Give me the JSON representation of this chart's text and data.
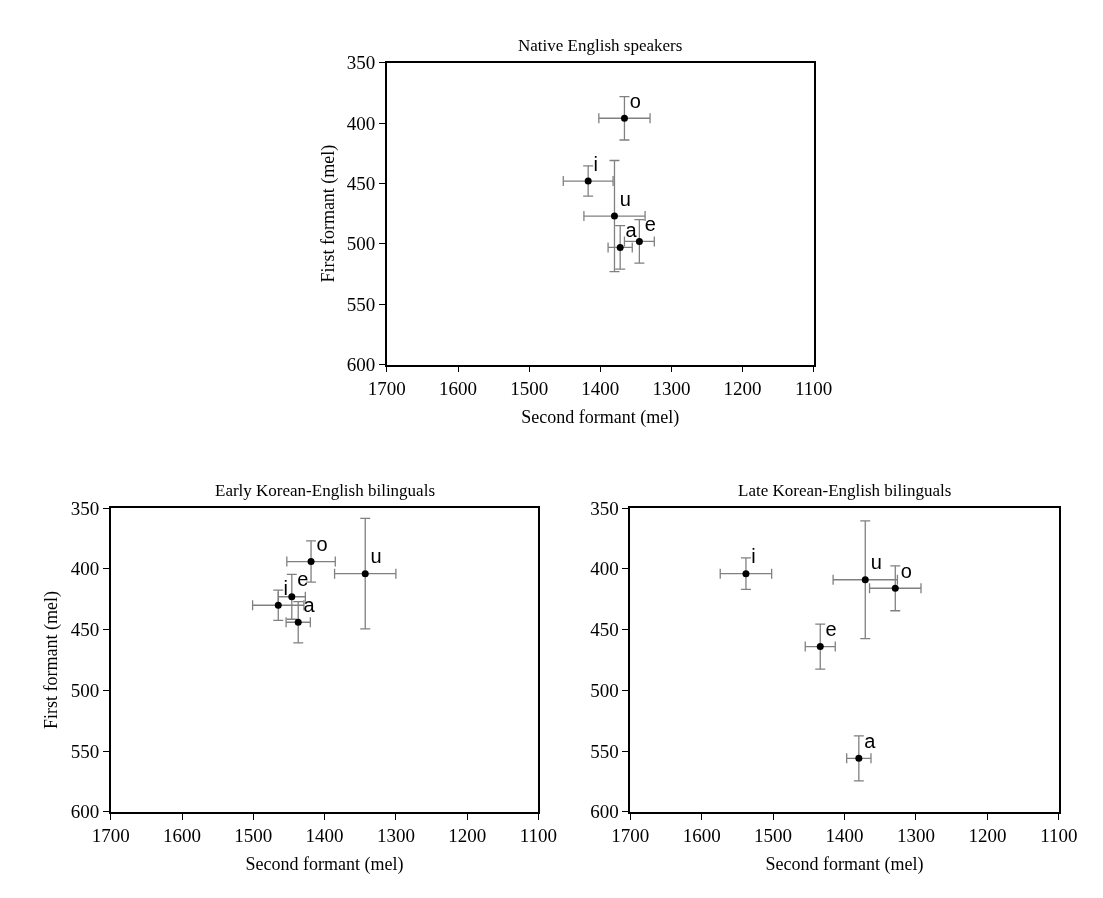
{
  "chart_data": [
    {
      "type": "scatter",
      "title": "Native English speakers",
      "xlabel": "Second formant (mel)",
      "ylabel": "First formant (mel)",
      "xlim": [
        1700,
        1100
      ],
      "ylim": [
        600,
        350
      ],
      "xticks": [
        1700,
        1600,
        1500,
        1400,
        1300,
        1200,
        1100
      ],
      "yticks": [
        350,
        400,
        450,
        500,
        550,
        600
      ],
      "marker": "none",
      "series": [
        {
          "color": "#000000",
          "x": [
            1366,
            1417,
            1380,
            1372,
            1345
          ],
          "values": [
            396,
            448,
            477,
            503,
            498
          ],
          "xerrors": [
            36,
            35,
            43,
            17,
            21
          ],
          "errors": [
            18,
            12.5,
            46,
            18,
            18
          ],
          "value_labels": [
            "o",
            "i",
            "u",
            "a",
            "e"
          ]
        }
      ]
    },
    {
      "type": "scatter",
      "title": "Early Korean-English bilinguals",
      "xlabel": "Second formant (mel)",
      "ylabel": "First formant (mel)",
      "xlim": [
        1700,
        1100
      ],
      "ylim": [
        600,
        350
      ],
      "xticks": [
        1700,
        1600,
        1500,
        1400,
        1300,
        1200,
        1100
      ],
      "yticks": [
        350,
        400,
        450,
        500,
        550,
        600
      ],
      "marker": "none",
      "series": [
        {
          "color": "#000000",
          "x": [
            1419,
            1343,
            1446,
            1465,
            1437
          ],
          "values": [
            394,
            404,
            423,
            430,
            444
          ],
          "xerrors": [
            34,
            43,
            19,
            36,
            17
          ],
          "errors": [
            17,
            45.5,
            18.5,
            12.5,
            17
          ],
          "value_labels": [
            "o",
            "u",
            "e",
            "i",
            "a"
          ]
        }
      ]
    },
    {
      "type": "scatter",
      "title": "Late Korean-English bilinguals",
      "xlabel": "Second formant (mel)",
      "xlim": [
        1700,
        1100
      ],
      "ylim": [
        600,
        350
      ],
      "xticks": [
        1700,
        1600,
        1500,
        1400,
        1300,
        1200,
        1100
      ],
      "yticks": [
        350,
        400,
        450,
        500,
        550,
        600
      ],
      "marker": "none",
      "series": [
        {
          "color": "#000000",
          "x": [
            1538,
            1371,
            1329,
            1434,
            1380
          ],
          "values": [
            404,
            409,
            416,
            464,
            556
          ],
          "xerrors": [
            36,
            45,
            36,
            21,
            17
          ],
          "errors": [
            13,
            48.5,
            18.5,
            18.5,
            18.5
          ],
          "value_labels": [
            "i",
            "u",
            "o",
            "e",
            "a"
          ]
        }
      ]
    }
  ]
}
